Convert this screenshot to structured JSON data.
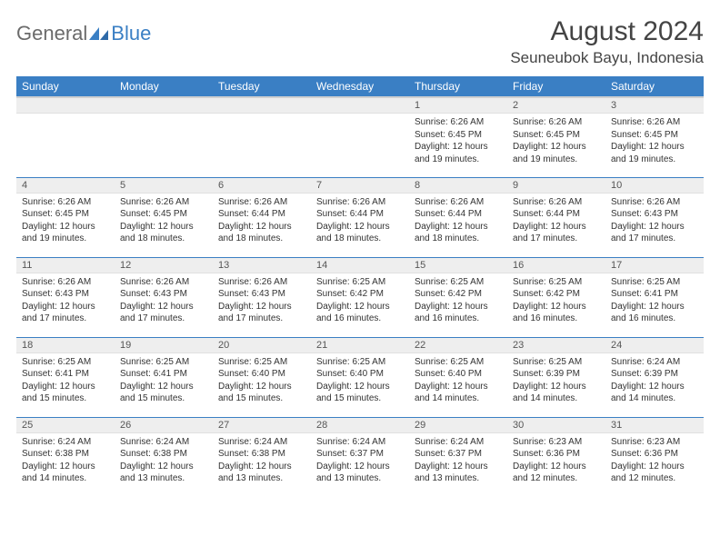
{
  "logo": {
    "general": "General",
    "blue": "Blue"
  },
  "title": "August 2024",
  "location": "Seuneubok Bayu, Indonesia",
  "colors": {
    "header_bg": "#3a7fc4",
    "header_text": "#ffffff",
    "daynum_bg": "#eeeeee",
    "cell_border": "#3a7fc4",
    "body_text": "#333333"
  },
  "weekdays": [
    "Sunday",
    "Monday",
    "Tuesday",
    "Wednesday",
    "Thursday",
    "Friday",
    "Saturday"
  ],
  "weeks": [
    [
      null,
      null,
      null,
      null,
      {
        "n": "1",
        "sunrise": "6:26 AM",
        "sunset": "6:45 PM",
        "daylight": "12 hours and 19 minutes."
      },
      {
        "n": "2",
        "sunrise": "6:26 AM",
        "sunset": "6:45 PM",
        "daylight": "12 hours and 19 minutes."
      },
      {
        "n": "3",
        "sunrise": "6:26 AM",
        "sunset": "6:45 PM",
        "daylight": "12 hours and 19 minutes."
      }
    ],
    [
      {
        "n": "4",
        "sunrise": "6:26 AM",
        "sunset": "6:45 PM",
        "daylight": "12 hours and 19 minutes."
      },
      {
        "n": "5",
        "sunrise": "6:26 AM",
        "sunset": "6:45 PM",
        "daylight": "12 hours and 18 minutes."
      },
      {
        "n": "6",
        "sunrise": "6:26 AM",
        "sunset": "6:44 PM",
        "daylight": "12 hours and 18 minutes."
      },
      {
        "n": "7",
        "sunrise": "6:26 AM",
        "sunset": "6:44 PM",
        "daylight": "12 hours and 18 minutes."
      },
      {
        "n": "8",
        "sunrise": "6:26 AM",
        "sunset": "6:44 PM",
        "daylight": "12 hours and 18 minutes."
      },
      {
        "n": "9",
        "sunrise": "6:26 AM",
        "sunset": "6:44 PM",
        "daylight": "12 hours and 17 minutes."
      },
      {
        "n": "10",
        "sunrise": "6:26 AM",
        "sunset": "6:43 PM",
        "daylight": "12 hours and 17 minutes."
      }
    ],
    [
      {
        "n": "11",
        "sunrise": "6:26 AM",
        "sunset": "6:43 PM",
        "daylight": "12 hours and 17 minutes."
      },
      {
        "n": "12",
        "sunrise": "6:26 AM",
        "sunset": "6:43 PM",
        "daylight": "12 hours and 17 minutes."
      },
      {
        "n": "13",
        "sunrise": "6:26 AM",
        "sunset": "6:43 PM",
        "daylight": "12 hours and 17 minutes."
      },
      {
        "n": "14",
        "sunrise": "6:25 AM",
        "sunset": "6:42 PM",
        "daylight": "12 hours and 16 minutes."
      },
      {
        "n": "15",
        "sunrise": "6:25 AM",
        "sunset": "6:42 PM",
        "daylight": "12 hours and 16 minutes."
      },
      {
        "n": "16",
        "sunrise": "6:25 AM",
        "sunset": "6:42 PM",
        "daylight": "12 hours and 16 minutes."
      },
      {
        "n": "17",
        "sunrise": "6:25 AM",
        "sunset": "6:41 PM",
        "daylight": "12 hours and 16 minutes."
      }
    ],
    [
      {
        "n": "18",
        "sunrise": "6:25 AM",
        "sunset": "6:41 PM",
        "daylight": "12 hours and 15 minutes."
      },
      {
        "n": "19",
        "sunrise": "6:25 AM",
        "sunset": "6:41 PM",
        "daylight": "12 hours and 15 minutes."
      },
      {
        "n": "20",
        "sunrise": "6:25 AM",
        "sunset": "6:40 PM",
        "daylight": "12 hours and 15 minutes."
      },
      {
        "n": "21",
        "sunrise": "6:25 AM",
        "sunset": "6:40 PM",
        "daylight": "12 hours and 15 minutes."
      },
      {
        "n": "22",
        "sunrise": "6:25 AM",
        "sunset": "6:40 PM",
        "daylight": "12 hours and 14 minutes."
      },
      {
        "n": "23",
        "sunrise": "6:25 AM",
        "sunset": "6:39 PM",
        "daylight": "12 hours and 14 minutes."
      },
      {
        "n": "24",
        "sunrise": "6:24 AM",
        "sunset": "6:39 PM",
        "daylight": "12 hours and 14 minutes."
      }
    ],
    [
      {
        "n": "25",
        "sunrise": "6:24 AM",
        "sunset": "6:38 PM",
        "daylight": "12 hours and 14 minutes."
      },
      {
        "n": "26",
        "sunrise": "6:24 AM",
        "sunset": "6:38 PM",
        "daylight": "12 hours and 13 minutes."
      },
      {
        "n": "27",
        "sunrise": "6:24 AM",
        "sunset": "6:38 PM",
        "daylight": "12 hours and 13 minutes."
      },
      {
        "n": "28",
        "sunrise": "6:24 AM",
        "sunset": "6:37 PM",
        "daylight": "12 hours and 13 minutes."
      },
      {
        "n": "29",
        "sunrise": "6:24 AM",
        "sunset": "6:37 PM",
        "daylight": "12 hours and 13 minutes."
      },
      {
        "n": "30",
        "sunrise": "6:23 AM",
        "sunset": "6:36 PM",
        "daylight": "12 hours and 12 minutes."
      },
      {
        "n": "31",
        "sunrise": "6:23 AM",
        "sunset": "6:36 PM",
        "daylight": "12 hours and 12 minutes."
      }
    ]
  ],
  "labels": {
    "sunrise": "Sunrise: ",
    "sunset": "Sunset: ",
    "daylight": "Daylight: "
  }
}
